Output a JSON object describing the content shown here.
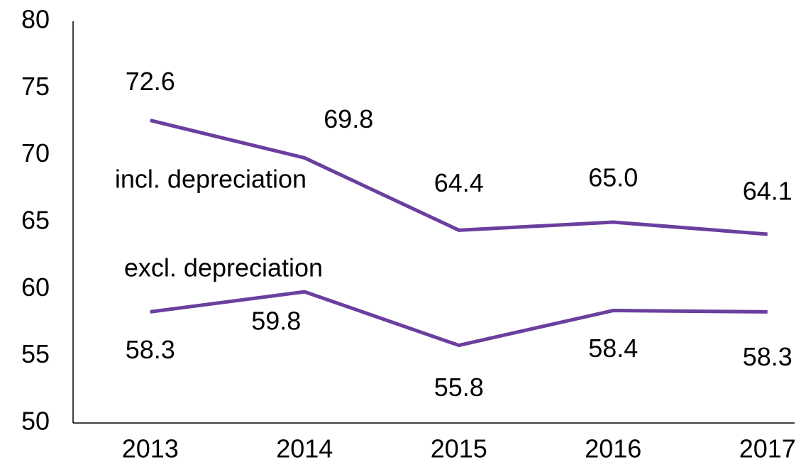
{
  "chart_data": {
    "type": "line",
    "categories": [
      "2013",
      "2014",
      "2015",
      "2016",
      "2017"
    ],
    "series": [
      {
        "name": "incl. depreciation",
        "color": "#6a3f9e",
        "values": [
          72.6,
          69.8,
          64.4,
          65.0,
          64.1
        ],
        "value_labels": [
          "72.6",
          "69.8",
          "64.4",
          "65.0",
          "64.1"
        ]
      },
      {
        "name": "excl. depreciation",
        "color": "#6a3f9e",
        "values": [
          58.3,
          59.8,
          55.8,
          58.4,
          58.3
        ],
        "value_labels": [
          "58.3",
          "59.8",
          "55.8",
          "58.4",
          "58.3"
        ]
      }
    ],
    "ylim": [
      50,
      80
    ],
    "yticks": [
      50,
      55,
      60,
      65,
      70,
      75,
      80
    ],
    "grid": false
  }
}
